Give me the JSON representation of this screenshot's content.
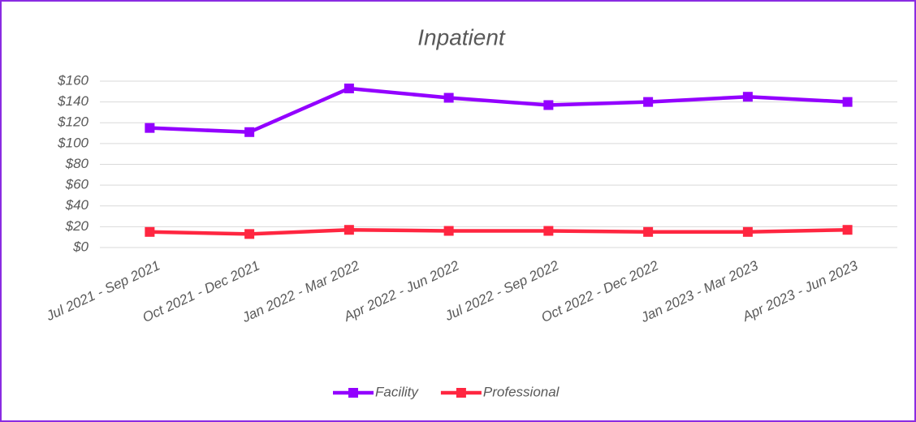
{
  "chart_data": {
    "type": "line",
    "title": "Inpatient",
    "categories": [
      "Jul 2021 - Sep 2021",
      "Oct 2021 - Dec 2021",
      "Jan 2022 - Mar 2022",
      "Apr 2022 - Jun 2022",
      "Jul 2022 - Sep 2022",
      "Oct 2022 - Dec 2022",
      "Jan 2023 - Mar 2023",
      "Apr 2023 - Jun 2023"
    ],
    "series": [
      {
        "name": "Facility",
        "color": "#9300ff",
        "values": [
          115,
          111,
          153,
          144,
          137,
          140,
          145,
          140
        ]
      },
      {
        "name": "Professional",
        "color": "#ff2640",
        "values": [
          15,
          13,
          17,
          16,
          16,
          15,
          15,
          17
        ]
      }
    ],
    "ylim": [
      0,
      160
    ],
    "yticks": [
      {
        "value": 0,
        "label": "$0"
      },
      {
        "value": 20,
        "label": "$20"
      },
      {
        "value": 40,
        "label": "$40"
      },
      {
        "value": 60,
        "label": "$60"
      },
      {
        "value": 80,
        "label": "$80"
      },
      {
        "value": 100,
        "label": "$100"
      },
      {
        "value": 120,
        "label": "$120"
      },
      {
        "value": 140,
        "label": "$140"
      },
      {
        "value": 160,
        "label": "$160"
      }
    ],
    "grid": true,
    "legend": "bottom"
  }
}
